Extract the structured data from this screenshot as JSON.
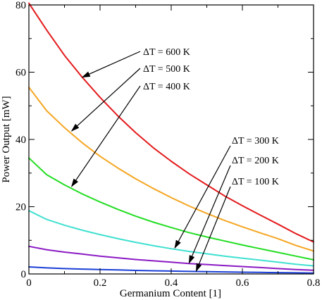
{
  "chart_data": {
    "type": "line",
    "title": "",
    "xlabel": "Germanium Content [1]",
    "ylabel": "Power Output [mW]",
    "xlim": [
      0,
      0.8
    ],
    "ylim": [
      0,
      80
    ],
    "x_ticks": [
      0,
      0.2,
      0.4,
      0.6,
      0.8
    ],
    "x_tick_labels": [
      "0",
      "0.2",
      "0.4",
      "0.6",
      "0.8"
    ],
    "y_ticks": [
      0,
      20,
      40,
      60,
      80
    ],
    "y_tick_labels": [
      "0",
      "20",
      "40",
      "60",
      "80"
    ],
    "grid": false,
    "legend": "none",
    "x": [
      0,
      0.05,
      0.1,
      0.15,
      0.2,
      0.25,
      0.3,
      0.35,
      0.4,
      0.45,
      0.5,
      0.55,
      0.6,
      0.65,
      0.7,
      0.75,
      0.8
    ],
    "series": [
      {
        "name": "ΔT = 600 K",
        "color": "#e31a1c",
        "values": [
          80.5,
          72.5,
          65,
          58.5,
          52.5,
          47,
          42,
          37.5,
          33.5,
          29.8,
          26.5,
          23.2,
          20.3,
          17.5,
          14.8,
          12,
          9.5
        ]
      },
      {
        "name": "ΔT = 500 K",
        "color": "#f5a623",
        "values": [
          55.5,
          48.5,
          43.5,
          39,
          35,
          31.5,
          28.3,
          25.4,
          22.7,
          20.2,
          18,
          15.9,
          14,
          12.2,
          10.5,
          8.5,
          6.8
        ]
      },
      {
        "name": "ΔT = 400 K",
        "color": "#22dd22",
        "values": [
          34.5,
          29.5,
          26.5,
          23.8,
          21.4,
          19.2,
          17.2,
          15.4,
          13.8,
          12.3,
          11,
          9.8,
          8.6,
          7.5,
          6.4,
          5.3,
          4.2
        ]
      },
      {
        "name": "ΔT = 300 K",
        "color": "#40e0d0",
        "values": [
          18.8,
          16.2,
          14.5,
          13,
          11.7,
          10.5,
          9.4,
          8.4,
          7.5,
          6.7,
          6,
          5.3,
          4.7,
          4.1,
          3.5,
          2.9,
          2.4
        ]
      },
      {
        "name": "ΔT = 200 K",
        "color": "#8b1ac4",
        "values": [
          8.2,
          7.2,
          6.5,
          5.9,
          5.3,
          4.8,
          4.3,
          3.9,
          3.5,
          3.1,
          2.8,
          2.5,
          2.2,
          1.9,
          1.6,
          1.3,
          1.1
        ]
      },
      {
        "name": "ΔT = 100 K",
        "color": "#1a3fd6",
        "values": [
          2.1,
          1.8,
          1.6,
          1.45,
          1.3,
          1.2,
          1.05,
          0.95,
          0.85,
          0.76,
          0.68,
          0.6,
          0.53,
          0.46,
          0.4,
          0.33,
          0.27
        ]
      }
    ],
    "annotations": [
      {
        "text": "ΔT = 600 K",
        "points_to": [
          0.15,
          58.5
        ]
      },
      {
        "text": "ΔT = 500 K",
        "points_to": [
          0.12,
          42.5
        ]
      },
      {
        "text": "ΔT = 400 K",
        "points_to": [
          0.12,
          26
        ]
      },
      {
        "text": "ΔT = 300 K",
        "points_to": [
          0.41,
          7.7
        ]
      },
      {
        "text": "ΔT = 200 K",
        "points_to": [
          0.45,
          3.2
        ]
      },
      {
        "text": "ΔT = 100 K",
        "points_to": [
          0.47,
          0.8
        ]
      }
    ]
  }
}
